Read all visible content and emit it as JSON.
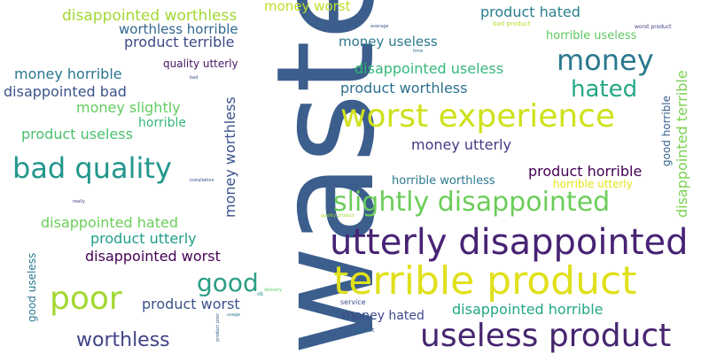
{
  "words": [
    {
      "text": "waste",
      "color": "#3b5e8c",
      "vertical": true
    },
    {
      "text": "terrible product",
      "color": "#e0e01c"
    },
    {
      "text": "utterly disappointed",
      "color": "#482374"
    },
    {
      "text": "worst experience",
      "color": "#cfe11c"
    },
    {
      "text": "useless product",
      "color": "#46256f"
    },
    {
      "text": "slightly disappointed",
      "color": "#6ccd5a"
    },
    {
      "text": "bad quality",
      "color": "#22968b"
    },
    {
      "text": "money",
      "color": "#2a788e"
    },
    {
      "text": "poor",
      "color": "#a2d832"
    },
    {
      "text": "hated",
      "color": "#26a884"
    },
    {
      "text": "good",
      "color": "#2b9e84"
    },
    {
      "text": "worthless",
      "color": "#414487"
    },
    {
      "text": "disappointed worthless",
      "color": "#a2d832"
    },
    {
      "text": "worthless horrible",
      "color": "#31688e"
    },
    {
      "text": "product terrible",
      "color": "#3e4a89"
    },
    {
      "text": "money worst",
      "color": "#bddf26"
    },
    {
      "text": "money useless",
      "color": "#2a788e"
    },
    {
      "text": "product hated",
      "color": "#277f8e"
    },
    {
      "text": "horrible useless",
      "color": "#5ec962"
    },
    {
      "text": "quality utterly",
      "color": "#471365"
    },
    {
      "text": "disappointed useless",
      "color": "#35b779"
    },
    {
      "text": "product worthless",
      "color": "#2c718e"
    },
    {
      "text": "money horrible",
      "color": "#29788e"
    },
    {
      "text": "disappointed bad",
      "color": "#3b528b"
    },
    {
      "text": "money slightly",
      "color": "#63cb5f"
    },
    {
      "text": "horrible",
      "color": "#35b779"
    },
    {
      "text": "product useless",
      "color": "#4ac16d"
    },
    {
      "text": "money utterly",
      "color": "#453882"
    },
    {
      "text": "product horrible",
      "color": "#440154"
    },
    {
      "text": "horrible worthless",
      "color": "#2a788e"
    },
    {
      "text": "horrible utterly",
      "color": "#e5e419"
    },
    {
      "text": "disappointed hated",
      "color": "#6ccd5a"
    },
    {
      "text": "product utterly",
      "color": "#1f9e89"
    },
    {
      "text": "disappointed worst",
      "color": "#440154"
    },
    {
      "text": "product worst",
      "color": "#3b528b"
    },
    {
      "text": "money hated",
      "color": "#3e4989"
    },
    {
      "text": "disappointed horrible",
      "color": "#22a785"
    },
    {
      "text": "money worthless",
      "color": "#3b528b",
      "vertical": true
    },
    {
      "text": "disappointed terrible",
      "color": "#7ad151",
      "vertical": true
    },
    {
      "text": "good horrible",
      "color": "#355f8d",
      "vertical": true
    },
    {
      "text": "good useless",
      "color": "#2a788e",
      "vertical": true
    },
    {
      "text": "service",
      "color": "#3e4989"
    },
    {
      "text": "flipkart",
      "color": "#31688e"
    },
    {
      "text": "bad product",
      "color": "#b5de2b"
    },
    {
      "text": "worst product",
      "color": "#414487"
    },
    {
      "text": "average",
      "color": "#3b528b"
    },
    {
      "text": "usage",
      "color": "#2a788e"
    },
    {
      "text": "delivery",
      "color": "#5ec962"
    },
    {
      "text": "really",
      "color": "#414487"
    },
    {
      "text": "installation",
      "color": "#3b528b"
    },
    {
      "text": "ok",
      "color": "#21918c"
    },
    {
      "text": "time",
      "color": "#31688e"
    },
    {
      "text": "bad",
      "color": "#3b528b"
    },
    {
      "text": "quality product",
      "color": "#a2d832"
    },
    {
      "text": "product poor",
      "color": "#355f8d",
      "vertical": true
    }
  ]
}
